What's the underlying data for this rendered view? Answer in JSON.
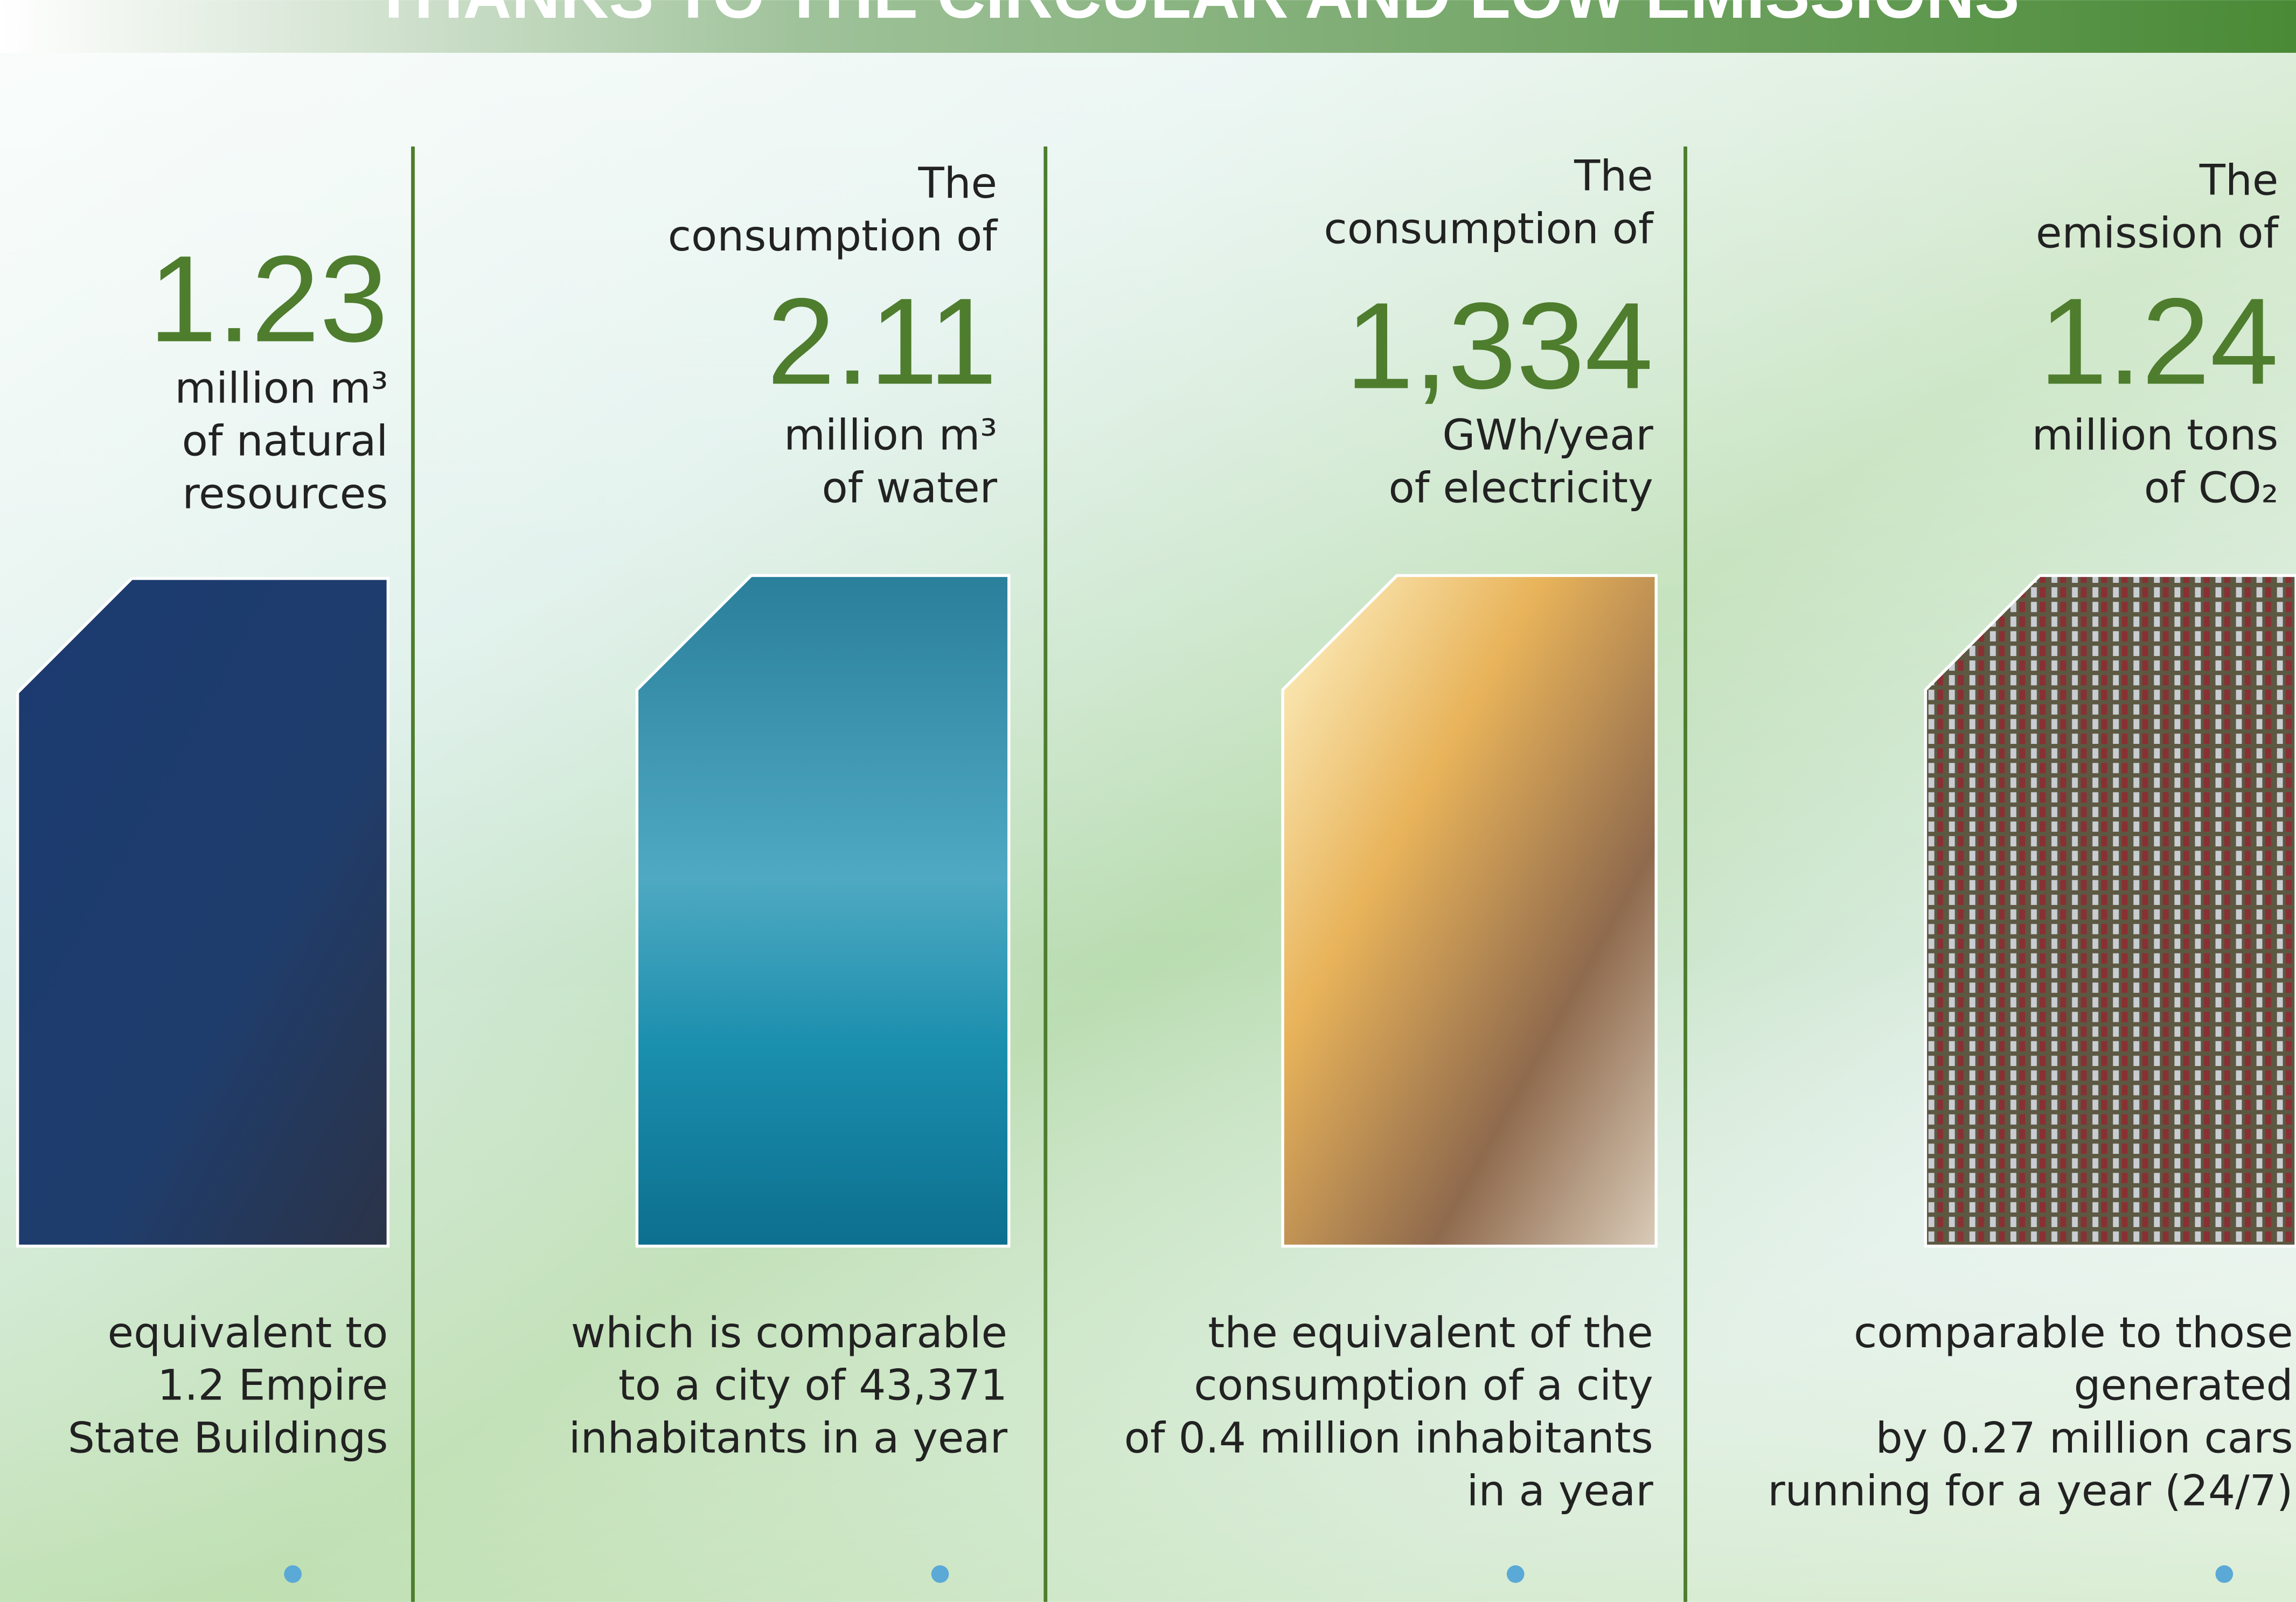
{
  "header": {
    "title": "THANKS TO THE CIRCULAR AND LOW EMISSIONS"
  },
  "columns": [
    {
      "intro": [],
      "value": "1.23",
      "unit": [
        "million m³",
        "of natural",
        "resources"
      ],
      "comparison": [
        "equivalent to",
        "1.2 Empire",
        "State Buildings"
      ]
    },
    {
      "intro": [
        "The",
        "consumption of"
      ],
      "value": "2.11",
      "unit": [
        "million m³",
        "of water"
      ],
      "comparison": [
        "which is comparable",
        "to a city of 43,371",
        "inhabitants in a year"
      ]
    },
    {
      "intro": [
        "The",
        "consumption of"
      ],
      "value": "1,334",
      "unit": [
        "GWh/year",
        "of electricity"
      ],
      "comparison": [
        "the equivalent of the",
        "consumption of a city",
        "of 0.4 million inhabitants",
        "in a year"
      ]
    },
    {
      "intro": [
        "The",
        "emission of"
      ],
      "value": "1.24",
      "unit": [
        "million tons",
        "of CO₂"
      ],
      "comparison": [
        "comparable to those",
        "generated",
        "by 0.27 million cars",
        "running for a year (24/7)"
      ]
    }
  ]
}
